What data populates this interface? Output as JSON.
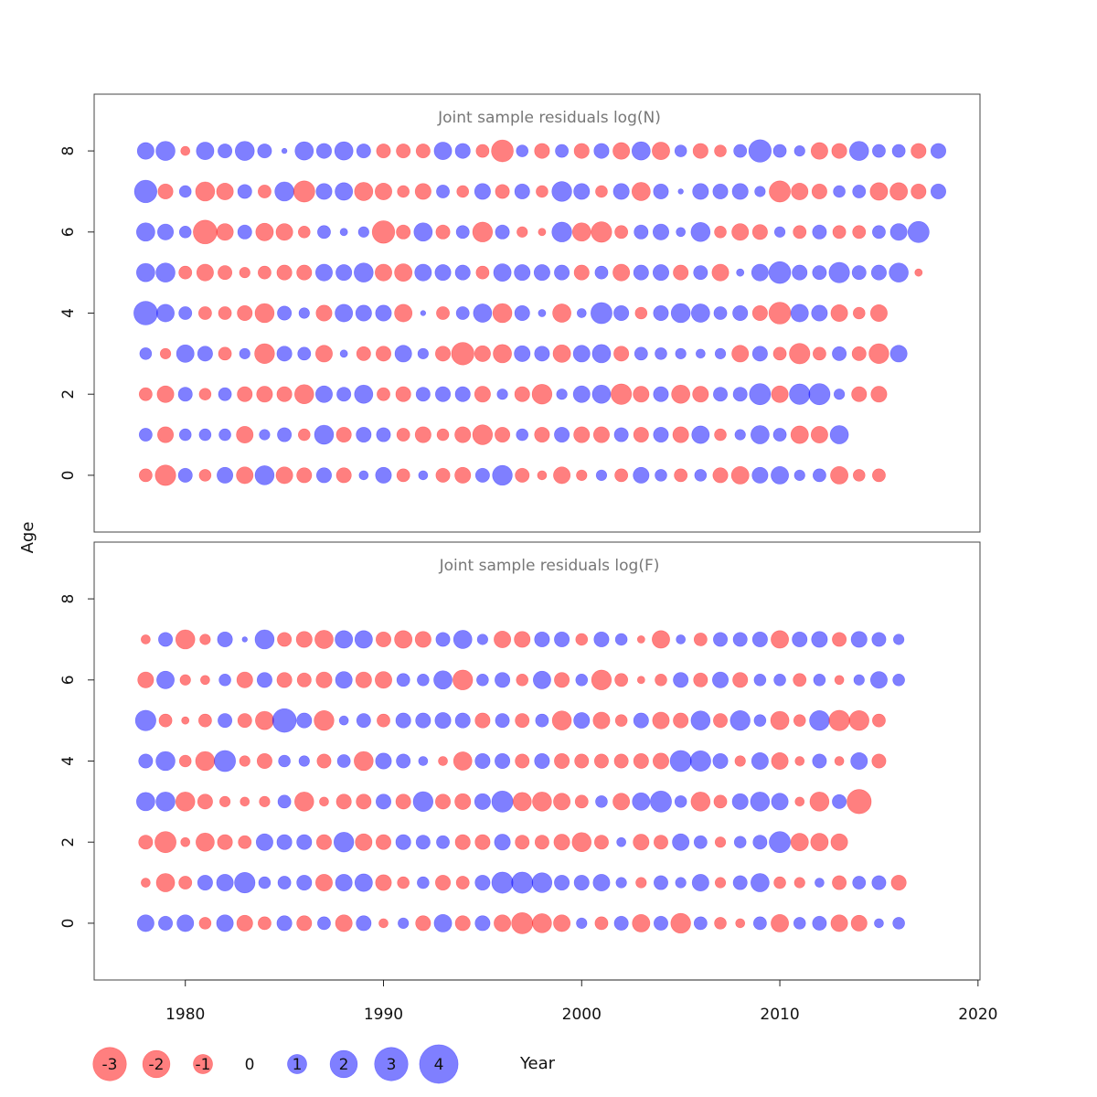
{
  "page": {
    "ylabel": "Age",
    "xlabel": "Year"
  },
  "colors": {
    "negative": "#ff0000",
    "positive": "#0000ff",
    "bubble_opacity": 0.5
  },
  "chart_data": [
    {
      "type": "bubble",
      "title": "Joint sample residuals log(N)",
      "x_ticks": [
        1980,
        1990,
        2000,
        2010,
        2020
      ],
      "y_ticks": [
        0,
        2,
        4,
        6,
        8
      ],
      "ylim": [
        -1.4,
        9.4
      ],
      "xlim": [
        1975.4,
        2020.1
      ],
      "years_range": [
        1978,
        2018
      ],
      "ages": [
        0,
        1,
        2,
        3,
        4,
        5,
        6,
        7,
        8
      ],
      "residuals_by_age": {
        "8": [
          1.0,
          1.3,
          -0.3,
          1.1,
          0.7,
          1.3,
          0.7,
          0.1,
          1.2,
          0.8,
          1.2,
          0.7,
          -0.7,
          -0.7,
          -0.7,
          1.1,
          0.8,
          -0.6,
          -1.7,
          0.5,
          -0.8,
          0.6,
          -0.8,
          0.8,
          -1.0,
          1.2,
          -1.1,
          0.5,
          -0.8,
          -0.5,
          0.6,
          1.8,
          0.6,
          0.4,
          -1.0,
          -0.8,
          1.3,
          0.6,
          0.6,
          -0.8,
          0.8
        ],
        "7": [
          1.8,
          -0.8,
          0.5,
          -1.3,
          -1.0,
          0.7,
          -0.6,
          1.3,
          -1.6,
          0.9,
          1.1,
          -1.2,
          -1.0,
          -0.5,
          -0.9,
          0.6,
          -0.5,
          0.9,
          -0.7,
          0.8,
          -0.5,
          1.4,
          0.9,
          -0.5,
          0.9,
          -1.2,
          0.8,
          0.1,
          0.9,
          0.8,
          0.9,
          0.4,
          -1.6,
          -1.0,
          -0.8,
          0.5,
          0.6,
          -1.1,
          -1.1,
          -0.8,
          0.8
        ],
        "6": [
          1.2,
          0.9,
          0.5,
          -2.0,
          -1.0,
          0.7,
          -1.1,
          -1.0,
          -0.5,
          0.6,
          0.2,
          0.4,
          -1.8,
          -0.7,
          1.2,
          -0.7,
          0.6,
          -1.4,
          0.7,
          -0.4,
          -0.2,
          1.4,
          -1.2,
          -1.5,
          -0.6,
          0.7,
          0.9,
          0.3,
          1.3,
          -0.5,
          -1.0,
          -0.8,
          0.4,
          -0.6,
          0.7,
          -0.6,
          -0.6,
          0.6,
          1.0,
          1.6
        ],
        "5": [
          1.2,
          1.3,
          -0.6,
          -1.0,
          -0.7,
          -0.4,
          -0.6,
          -0.8,
          -0.8,
          1.0,
          0.9,
          1.3,
          -1.0,
          -1.1,
          1.0,
          0.9,
          0.8,
          -0.6,
          1.1,
          0.9,
          0.9,
          0.8,
          -0.8,
          0.6,
          -1.0,
          0.8,
          0.9,
          -0.8,
          0.7,
          -1.0,
          0.2,
          1.0,
          1.7,
          0.8,
          0.7,
          1.5,
          0.7,
          0.8,
          1.3,
          -0.2
        ],
        "4": [
          2.0,
          1.1,
          0.6,
          -0.6,
          -0.6,
          -0.8,
          -1.3,
          0.7,
          0.4,
          -0.9,
          1.1,
          0.9,
          0.9,
          -1.1,
          0.1,
          -0.6,
          0.6,
          1.2,
          -1.3,
          0.8,
          0.2,
          -1.2,
          0.3,
          1.6,
          0.8,
          -0.5,
          0.8,
          1.3,
          1.2,
          0.6,
          0.8,
          -0.8,
          -1.7,
          1.1,
          0.9,
          -1.0,
          -0.5,
          -1.0
        ],
        "3": [
          0.5,
          -0.4,
          1.1,
          0.8,
          -0.6,
          0.4,
          -1.4,
          0.8,
          0.6,
          -1.0,
          0.2,
          -0.7,
          -0.8,
          1.0,
          0.4,
          -0.8,
          -1.8,
          -0.9,
          -1.2,
          0.9,
          0.8,
          -1.1,
          1.0,
          1.2,
          -0.8,
          0.6,
          0.5,
          0.4,
          0.3,
          0.4,
          -1.0,
          0.8,
          -0.6,
          -1.5,
          -0.6,
          0.7,
          -0.7,
          -1.4,
          1.0
        ],
        "2": [
          -0.6,
          -1.0,
          0.7,
          -0.5,
          0.6,
          -0.8,
          -0.9,
          -0.8,
          -1.3,
          1.0,
          0.7,
          1.2,
          -0.6,
          -0.8,
          0.7,
          0.8,
          0.8,
          -0.9,
          0.4,
          -0.8,
          -1.4,
          0.4,
          1.0,
          1.2,
          -1.5,
          -0.9,
          0.8,
          -1.2,
          -0.9,
          0.7,
          0.7,
          1.6,
          -1.0,
          1.5,
          1.6,
          0.4,
          -0.8,
          -0.9
        ],
        "1": [
          0.6,
          -0.9,
          0.5,
          0.5,
          0.5,
          -1.0,
          0.4,
          0.7,
          -0.5,
          1.3,
          -0.8,
          0.8,
          0.7,
          -0.6,
          -0.9,
          -0.5,
          -0.9,
          -1.4,
          -0.8,
          0.5,
          -0.8,
          0.8,
          -0.9,
          -0.9,
          0.7,
          -0.8,
          0.8,
          -0.9,
          1.1,
          -0.5,
          0.4,
          1.2,
          0.6,
          -1.1,
          -1.0,
          1.2
        ],
        "0": [
          -0.6,
          -1.5,
          0.7,
          -0.5,
          0.9,
          -1.0,
          1.3,
          -1.0,
          -0.8,
          0.8,
          -0.8,
          0.3,
          0.9,
          -0.6,
          0.3,
          -0.7,
          -0.9,
          0.7,
          1.4,
          -0.7,
          -0.3,
          -1.0,
          -0.4,
          0.4,
          -0.6,
          0.9,
          0.5,
          -0.6,
          0.5,
          -0.8,
          -1.1,
          0.9,
          1.1,
          0.4,
          0.6,
          -1.1,
          -0.5,
          -0.6
        ]
      }
    },
    {
      "type": "bubble",
      "title": "Joint sample residuals log(F)",
      "x_ticks": [
        1980,
        1990,
        2000,
        2010,
        2020
      ],
      "y_ticks": [
        0,
        2,
        4,
        6,
        8
      ],
      "ylim": [
        -1.4,
        9.4
      ],
      "xlim": [
        1975.4,
        2020.1
      ],
      "years_range": [
        1978,
        2018
      ],
      "ages": [
        0,
        1,
        2,
        3,
        4,
        5,
        6,
        7
      ],
      "residuals_by_age": {
        "7": [
          -0.3,
          0.7,
          -1.3,
          -0.4,
          0.8,
          0.1,
          1.3,
          -0.7,
          -0.9,
          -1.2,
          1.1,
          1.1,
          -0.8,
          -1.1,
          -0.9,
          0.7,
          1.2,
          0.4,
          -1.0,
          -0.9,
          0.8,
          0.8,
          -0.5,
          0.8,
          0.5,
          -0.2,
          -1.1,
          0.3,
          -0.6,
          0.7,
          0.7,
          0.8,
          -1.1,
          0.8,
          0.9,
          -0.7,
          0.9,
          0.7,
          0.4
        ],
        "6": [
          -0.9,
          1.1,
          -0.4,
          -0.3,
          0.5,
          -0.9,
          0.8,
          -0.8,
          -0.7,
          -0.9,
          1.0,
          -0.9,
          -1.0,
          0.6,
          0.5,
          1.2,
          -1.4,
          0.5,
          0.8,
          -0.5,
          1.1,
          -0.8,
          0.5,
          -1.4,
          -0.6,
          -0.2,
          -0.5,
          0.8,
          -0.7,
          0.9,
          -0.8,
          0.5,
          0.5,
          -0.6,
          0.5,
          -0.3,
          0.4,
          1.0,
          0.5
        ],
        "5": [
          1.5,
          -0.6,
          -0.2,
          -0.6,
          0.7,
          -0.7,
          -1.2,
          2.0,
          0.8,
          -1.4,
          0.3,
          0.7,
          -0.6,
          0.8,
          0.8,
          0.9,
          0.8,
          -0.8,
          0.7,
          -0.7,
          0.6,
          -1.3,
          0.9,
          -1.0,
          -0.5,
          0.8,
          -1.0,
          -0.8,
          1.3,
          -0.7,
          1.4,
          0.5,
          -1.2,
          -0.5,
          1.4,
          -1.5,
          -1.4,
          -0.6
        ],
        "4": [
          0.7,
          1.3,
          -0.5,
          -1.3,
          1.6,
          -0.4,
          -0.8,
          0.5,
          0.4,
          -0.7,
          0.6,
          -1.3,
          0.9,
          0.7,
          0.3,
          -0.3,
          -1.2,
          0.8,
          0.8,
          -0.7,
          0.8,
          -0.8,
          -0.7,
          -0.7,
          -0.7,
          -0.8,
          -0.9,
          1.6,
          1.5,
          0.8,
          -0.4,
          1.0,
          -1.0,
          -0.3,
          0.7,
          -0.3,
          1.0,
          -0.7
        ],
        "3": [
          1.2,
          1.3,
          -1.3,
          -0.8,
          -0.4,
          -0.3,
          -0.4,
          0.6,
          -1.3,
          -0.3,
          -0.8,
          -0.8,
          0.8,
          -0.8,
          1.4,
          -0.8,
          -0.9,
          0.9,
          1.6,
          -1.2,
          -1.3,
          -1.0,
          -0.6,
          0.5,
          -1.0,
          1.1,
          1.6,
          0.5,
          -1.3,
          -0.6,
          0.9,
          1.3,
          1.0,
          -0.3,
          -1.3,
          0.7,
          -2.1
        ],
        "2": [
          -0.7,
          -1.6,
          -0.3,
          -1.2,
          -0.8,
          -0.6,
          1.0,
          0.8,
          0.8,
          -0.8,
          1.4,
          -1.0,
          -0.8,
          0.8,
          0.7,
          0.6,
          -0.8,
          -0.8,
          0.9,
          -0.7,
          -0.7,
          -0.9,
          -1.3,
          -0.7,
          0.3,
          -0.9,
          -0.7,
          1.0,
          0.6,
          -0.4,
          0.5,
          0.7,
          1.6,
          -1.1,
          -1.1,
          -1.0
        ],
        "1": [
          -0.3,
          -1.2,
          -0.6,
          0.8,
          1.0,
          1.5,
          0.5,
          0.6,
          0.8,
          -1.0,
          1.0,
          1.1,
          -0.9,
          -0.5,
          0.5,
          -0.8,
          -0.6,
          0.8,
          1.6,
          1.6,
          1.4,
          0.8,
          0.8,
          1.0,
          0.4,
          -0.4,
          0.7,
          0.4,
          1.0,
          -0.4,
          0.7,
          1.2,
          -0.5,
          -0.4,
          0.3,
          -0.7,
          0.6,
          0.7,
          -0.8
        ],
        "0": [
          1.0,
          0.7,
          1.0,
          -0.5,
          1.0,
          -0.9,
          -0.6,
          0.8,
          -0.8,
          0.6,
          -1.0,
          0.8,
          -0.3,
          0.4,
          -0.8,
          1.1,
          -0.8,
          0.8,
          -1.0,
          -1.6,
          -1.3,
          -1.0,
          0.4,
          -0.6,
          0.7,
          -1.1,
          0.7,
          -1.4,
          0.6,
          -0.5,
          -0.3,
          0.6,
          -1.1,
          0.5,
          0.7,
          -1.0,
          -0.9,
          0.3,
          0.5
        ]
      }
    }
  ],
  "legend": {
    "items": [
      {
        "label": "-3",
        "value": -3
      },
      {
        "label": "-2",
        "value": -2
      },
      {
        "label": "-1",
        "value": -1
      },
      {
        "label": "0",
        "value": 0
      },
      {
        "label": "1",
        "value": 1
      },
      {
        "label": "2",
        "value": 2
      },
      {
        "label": "3",
        "value": 3
      },
      {
        "label": "4",
        "value": 4
      }
    ]
  }
}
